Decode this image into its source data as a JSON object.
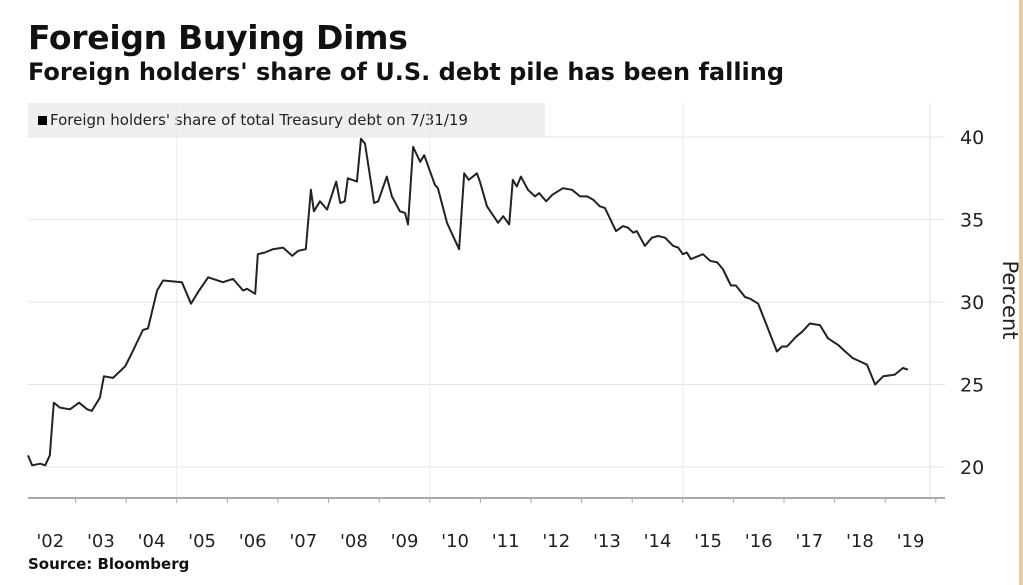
{
  "chart_data": {
    "type": "line",
    "title": "Foreign Buying Dims",
    "subtitle": "Foreign holders' share of U.S. debt pile has been falling",
    "legend": [
      "Foreign holders' share of total Treasury debt on 7/31/19"
    ],
    "legend_placement": "top-left",
    "xlabel": "",
    "ylabel": "Percent",
    "ylim": [
      18.2,
      41.5
    ],
    "yticks": [
      20,
      25,
      30,
      35,
      40
    ],
    "ytick_labels": [
      "20",
      "25",
      "30",
      "35",
      "40"
    ],
    "xticks": [
      "'02",
      "'03",
      "'04",
      "'05",
      "'06",
      "'07",
      "'08",
      "'09",
      "'10",
      "'11",
      "'12",
      "'13",
      "'14",
      "'15",
      "'16",
      "'17",
      "'18",
      "'19"
    ],
    "xlim": [
      2002,
      2020
    ],
    "grid": true,
    "source": "Source: Bloomberg",
    "series": [
      {
        "name": "Foreign holders' share of total Treasury debt",
        "color": "#222222",
        "x": [
          2002.06,
          2002.14,
          2002.3,
          2002.4,
          2002.49,
          2002.57,
          2002.69,
          2002.89,
          2003.07,
          2003.23,
          2003.32,
          2003.48,
          2003.56,
          2003.74,
          2003.98,
          2004.11,
          2004.33,
          2004.43,
          2004.61,
          2004.73,
          2005.1,
          2005.28,
          2005.44,
          2005.62,
          2005.91,
          2006.11,
          2006.31,
          2006.39,
          2006.55,
          2006.6,
          2006.74,
          2006.9,
          2007.1,
          2007.28,
          2007.4,
          2007.55,
          2007.65,
          2007.71,
          2007.83,
          2007.97,
          2008.15,
          2008.23,
          2008.32,
          2008.38,
          2008.56,
          2008.64,
          2008.72,
          2008.9,
          2008.98,
          2009.15,
          2009.25,
          2009.41,
          2009.51,
          2009.57,
          2009.67,
          2009.81,
          2009.89,
          2010.1,
          2010.16,
          2010.34,
          2010.58,
          2010.68,
          2010.77,
          2010.93,
          2010.99,
          2011.13,
          2011.35,
          2011.45,
          2011.57,
          2011.64,
          2011.72,
          2011.8,
          2011.94,
          2012.08,
          2012.16,
          2012.3,
          2012.42,
          2012.63,
          2012.81,
          2012.97,
          2013.11,
          2013.23,
          2013.36,
          2013.46,
          2013.68,
          2013.82,
          2013.92,
          2014.02,
          2014.09,
          2014.25,
          2014.39,
          2014.51,
          2014.65,
          2014.81,
          2014.91,
          2015.0,
          2015.08,
          2015.16,
          2015.4,
          2015.54,
          2015.68,
          2015.79,
          2015.95,
          2016.05,
          2016.23,
          2016.33,
          2016.49,
          2016.86,
          2016.96,
          2017.06,
          2017.24,
          2017.36,
          2017.51,
          2017.71,
          2017.87,
          2018.07,
          2018.21,
          2018.36,
          2018.5,
          2018.64,
          2018.8,
          2018.96,
          2019.19,
          2019.35,
          2019.45
        ],
        "y": [
          20.7,
          20.1,
          20.2,
          20.1,
          20.7,
          23.9,
          23.6,
          23.5,
          23.9,
          23.5,
          23.4,
          24.2,
          25.5,
          25.4,
          26.1,
          26.9,
          28.3,
          28.4,
          30.7,
          31.3,
          31.2,
          29.9,
          30.7,
          31.5,
          31.2,
          31.4,
          30.7,
          30.8,
          30.5,
          32.9,
          33.0,
          33.2,
          33.3,
          32.8,
          33.1,
          33.2,
          36.8,
          35.5,
          36.1,
          35.6,
          37.3,
          36.0,
          36.1,
          37.5,
          37.3,
          39.9,
          39.6,
          36.0,
          36.1,
          37.6,
          36.4,
          35.5,
          35.4,
          34.7,
          39.4,
          38.5,
          38.9,
          37.1,
          36.9,
          34.8,
          33.2,
          37.8,
          37.4,
          37.8,
          37.3,
          35.8,
          34.8,
          35.2,
          34.7,
          37.4,
          37.0,
          37.6,
          36.8,
          36.4,
          36.6,
          36.1,
          36.5,
          36.9,
          36.8,
          36.4,
          36.4,
          36.2,
          35.8,
          35.7,
          34.3,
          34.6,
          34.5,
          34.2,
          34.3,
          33.4,
          33.9,
          34.0,
          33.9,
          33.4,
          33.3,
          32.9,
          33.0,
          32.6,
          32.9,
          32.5,
          32.4,
          32.0,
          31.0,
          31.0,
          30.3,
          30.2,
          29.9,
          27.0,
          27.3,
          27.3,
          27.9,
          28.2,
          28.7,
          28.6,
          27.8,
          27.4,
          27.0,
          26.6,
          26.4,
          26.2,
          25.0,
          25.5,
          25.6,
          26.0,
          25.9
        ]
      }
    ]
  }
}
